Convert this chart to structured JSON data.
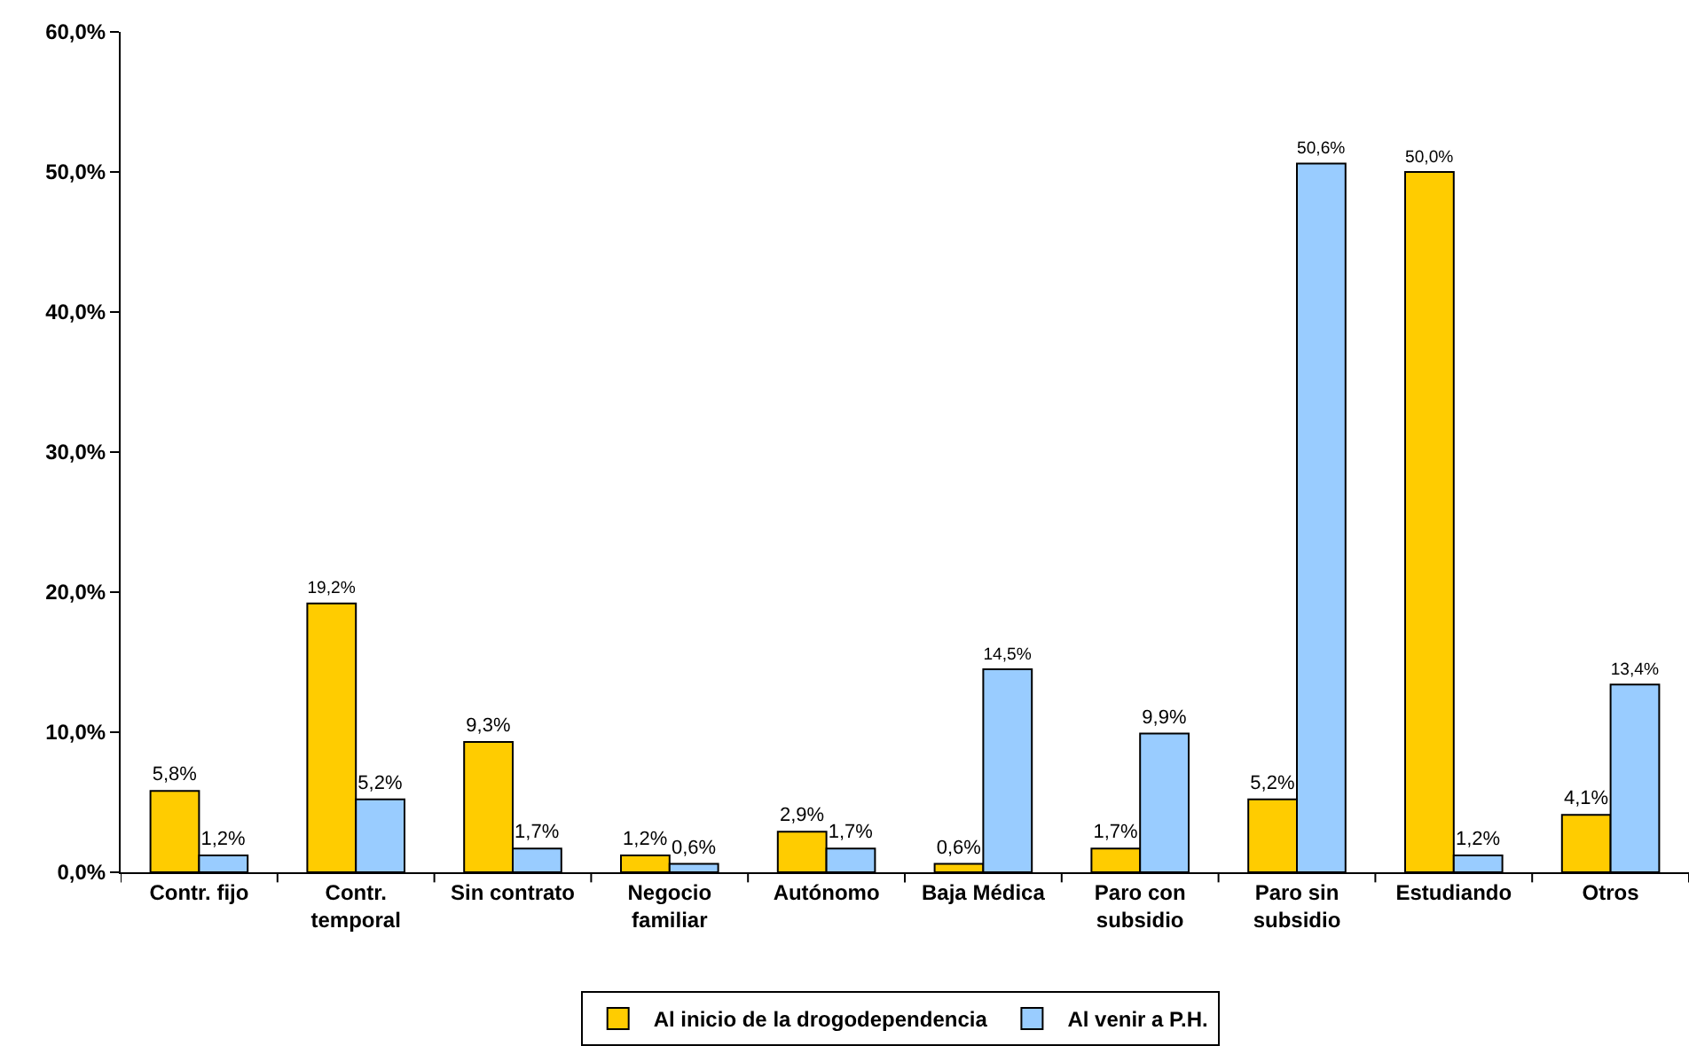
{
  "chart_data": {
    "type": "bar",
    "categories": [
      "Contr. fijo",
      "Contr. temporal",
      "Sin contrato",
      "Negocio familiar",
      "Autónomo",
      "Baja Médica",
      "Paro con subsidio",
      "Paro sin subsidio",
      "Estudiando",
      "Otros"
    ],
    "series": [
      {
        "name": "Al inicio de la drogodependencia",
        "color": "#ffcc00",
        "values": [
          5.8,
          19.2,
          9.3,
          1.2,
          2.9,
          0.6,
          1.7,
          5.2,
          50.0,
          4.1
        ],
        "value_labels": [
          "5,8%",
          "19,2%",
          "9,3%",
          "1,2%",
          "2,9%",
          "0,6%",
          "1,7%",
          "5,2%",
          "50,0%",
          "4,1%"
        ]
      },
      {
        "name": "Al venir a P.H.",
        "color": "#99ccff",
        "values": [
          1.2,
          5.2,
          1.7,
          0.6,
          1.7,
          14.5,
          9.9,
          50.6,
          1.2,
          13.4
        ],
        "value_labels": [
          "1,2%",
          "5,2%",
          "1,7%",
          "0,6%",
          "1,7%",
          "14,5%",
          "9,9%",
          "50,6%",
          "1,2%",
          "13,4%"
        ]
      }
    ],
    "ylim": [
      0,
      60
    ],
    "yticks": [
      {
        "value": 0,
        "label": "0,0%"
      },
      {
        "value": 10,
        "label": "10,0%"
      },
      {
        "value": 20,
        "label": "20,0%"
      },
      {
        "value": 30,
        "label": "30,0%"
      },
      {
        "value": 40,
        "label": "40,0%"
      },
      {
        "value": 50,
        "label": "50,0%"
      },
      {
        "value": 60,
        "label": "60,0%"
      }
    ],
    "legend": "bottom"
  }
}
